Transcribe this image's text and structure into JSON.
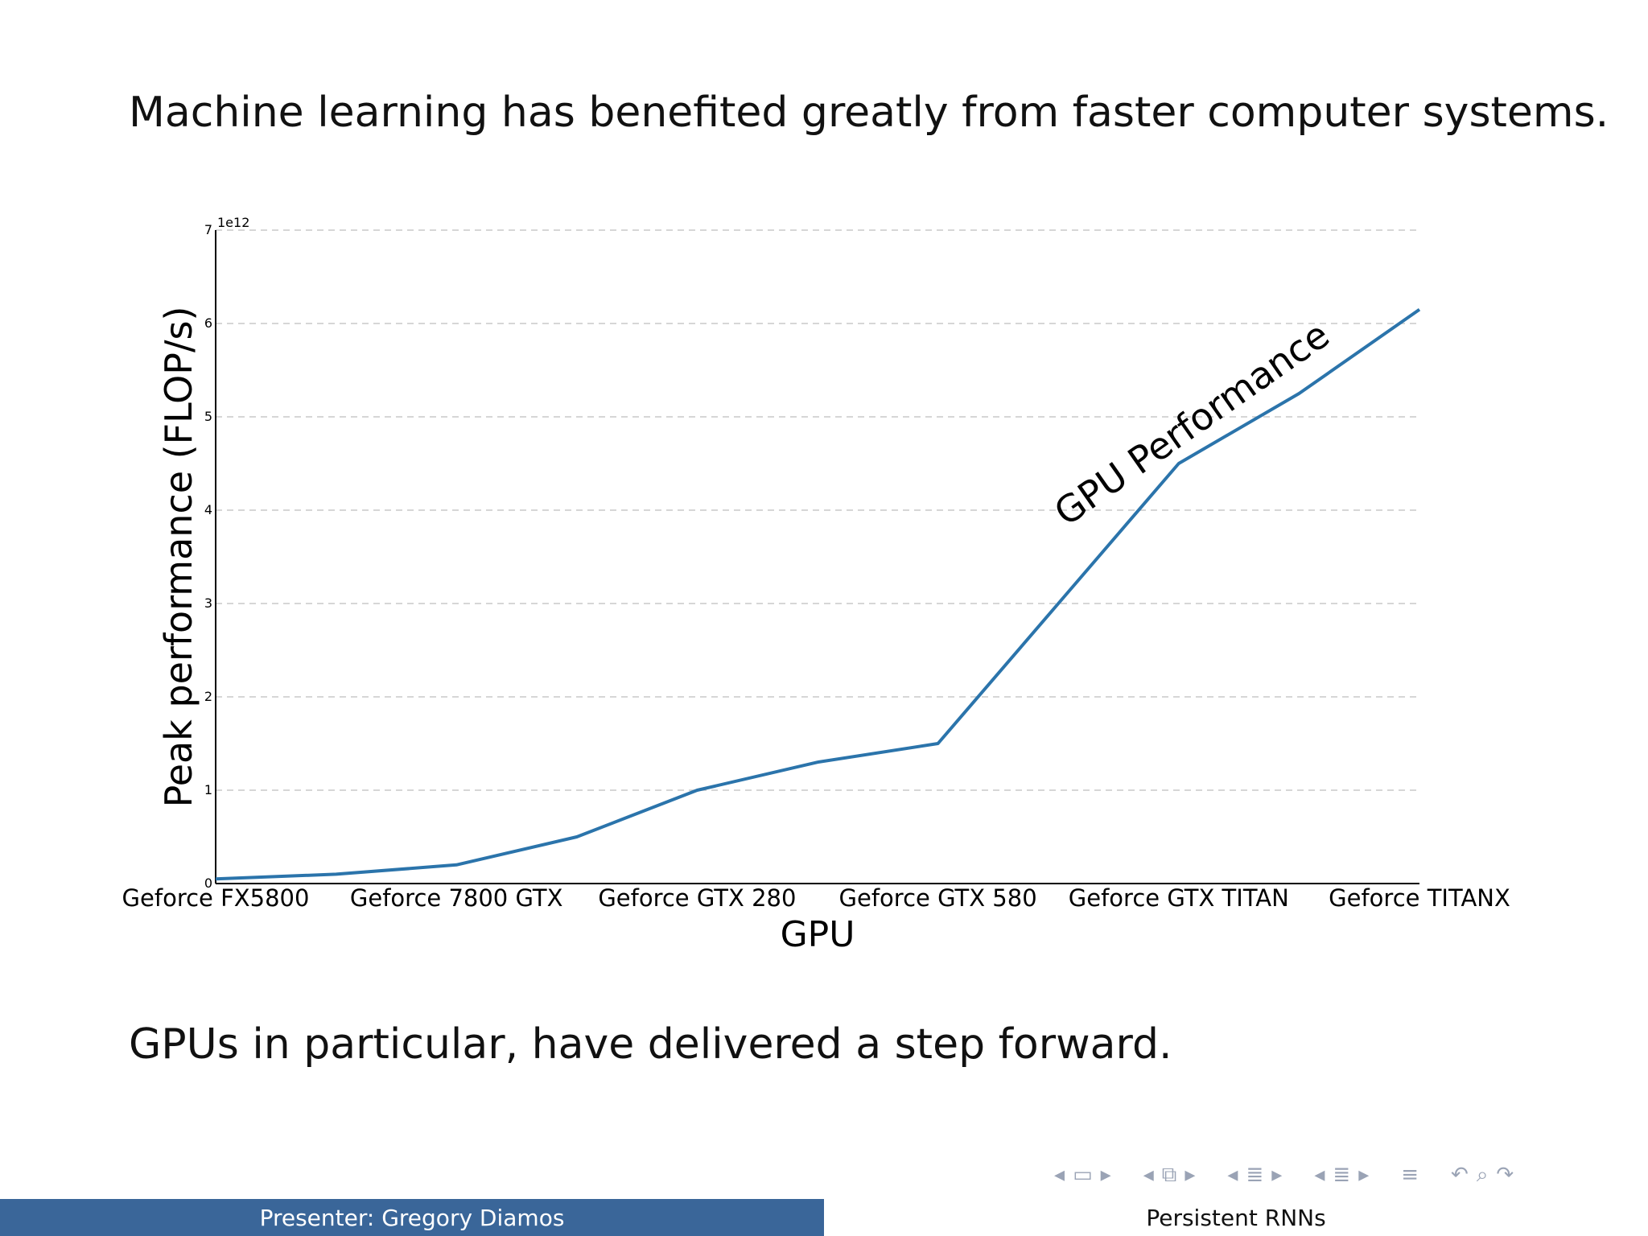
{
  "slide": {
    "headline": "Machine learning has benefited greatly from faster computer systems.",
    "body_line": "GPUs in particular, have delivered a step forward."
  },
  "chart_data": {
    "type": "line",
    "categories": [
      "Geforce FX5800",
      "Geforce 7800 GTX",
      "Geforce GTX 280",
      "Geforce GTX 580",
      "Geforce GTX TITAN",
      "Geforce TITANX"
    ],
    "x": [
      0,
      1,
      2,
      3,
      4,
      5,
      6,
      7,
      8,
      9,
      10
    ],
    "series": [
      {
        "values": [
          0.05,
          0.1,
          0.2,
          0.5,
          1.0,
          1.3,
          1.5,
          3.0,
          4.5,
          5.25,
          6.15
        ]
      }
    ],
    "category_positions": [
      0,
      2,
      4,
      6,
      8,
      10
    ],
    "xlabel": "GPU",
    "ylabel": "Peak performance (FLOP/s)",
    "ylim": [
      0,
      7
    ],
    "yticks": [
      "0",
      "1",
      "2",
      "3",
      "4",
      "5",
      "6",
      "7"
    ],
    "y_scale_label": "1e12",
    "annotation": "GPU Performance",
    "grid": "horizontal-dashed",
    "line_color": "#2b74ab"
  },
  "navigation": {
    "icons": [
      "nav-prev-arrow",
      "frame-icon",
      "nav-next-arrow",
      "nav-prev-arrow",
      "subsection-icon",
      "nav-next-arrow",
      "nav-prev-arrow",
      "section-icon",
      "nav-next-arrow",
      "nav-prev-arrow",
      "slide-icon",
      "nav-next-arrow",
      "align-icon",
      "undo-icon",
      "search-icon"
    ]
  },
  "footer": {
    "presenter": "Presenter: Gregory Diamos",
    "title": "Persistent RNNs",
    "left_color": "#3a6699"
  }
}
